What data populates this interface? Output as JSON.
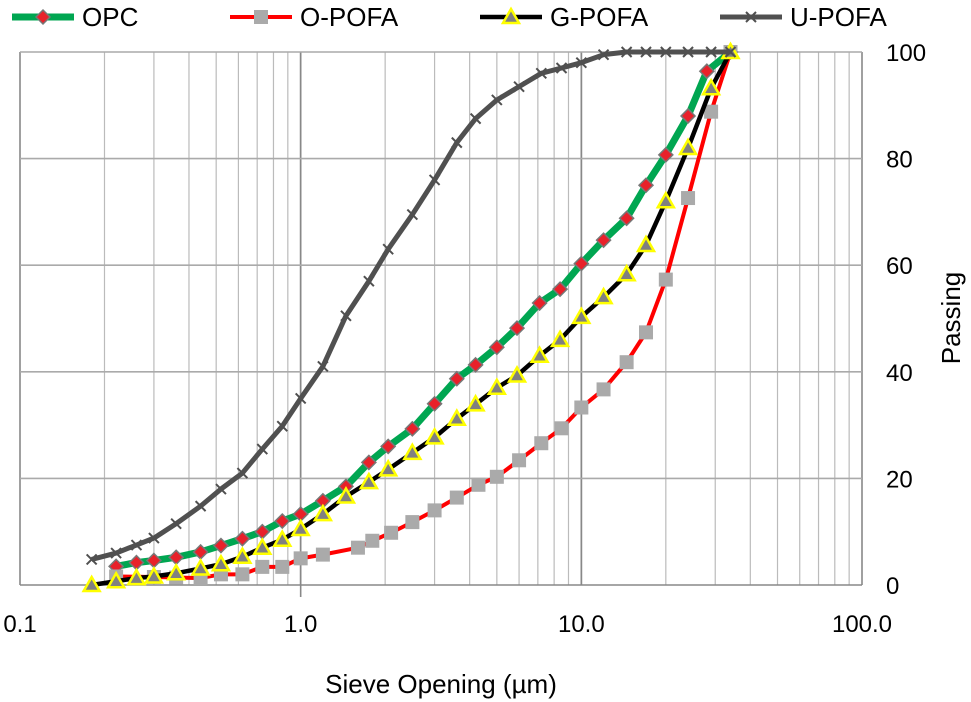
{
  "chart_data": {
    "type": "line",
    "title": "",
    "xlabel": "Sieve Opening (µm)",
    "ylabel": "Passing",
    "x_scale": "log",
    "xlim": [
      0.1,
      100
    ],
    "ylim": [
      0,
      100
    ],
    "x_ticks": [
      "0.1",
      "1.0",
      "10.0",
      "100.0"
    ],
    "y_ticks": [
      "0",
      "20",
      "40",
      "60",
      "80",
      "100"
    ],
    "y_axis_side": "right",
    "grid": true,
    "legend_position": "top",
    "series": [
      {
        "name": "OPC",
        "color": "#00a651",
        "marker": "diamond",
        "marker_color": "#e8212a",
        "x": [
          0.22,
          0.26,
          0.3,
          0.36,
          0.44,
          0.52,
          0.62,
          0.73,
          0.86,
          1.0,
          1.2,
          1.45,
          1.75,
          2.05,
          2.5,
          3.0,
          3.6,
          4.2,
          5.0,
          5.9,
          7.1,
          8.4,
          10,
          12,
          14.5,
          17,
          20,
          24,
          28,
          34
        ],
        "y": [
          3.5,
          4.2,
          4.6,
          5.2,
          6.2,
          7.4,
          8.7,
          10,
          12,
          13.3,
          15.8,
          18.5,
          23,
          26,
          29.3,
          34,
          38.7,
          41.3,
          44.6,
          48.2,
          52.9,
          55.5,
          60.3,
          64.7,
          68.8,
          75,
          80.7,
          88,
          96.4,
          100
        ]
      },
      {
        "name": "O-POFA",
        "color": "#ff0000",
        "marker": "square",
        "marker_color": "#aaaaaa",
        "x": [
          0.22,
          0.3,
          0.36,
          0.44,
          0.52,
          0.62,
          0.73,
          0.86,
          1.0,
          1.2,
          1.6,
          1.8,
          2.1,
          2.5,
          3.0,
          3.6,
          4.3,
          5.0,
          6.0,
          7.2,
          8.5,
          10,
          12,
          14.5,
          17,
          20,
          24,
          29,
          34
        ],
        "y": [
          1.6,
          1.5,
          1.4,
          1.3,
          2.0,
          2.0,
          3.4,
          3.4,
          5.0,
          5.7,
          7.0,
          8.3,
          9.8,
          11.8,
          14,
          16.4,
          18.8,
          20.3,
          23.4,
          26.6,
          29.4,
          33.3,
          36.7,
          41.8,
          47.4,
          57.3,
          72.6,
          88.8,
          100
        ]
      },
      {
        "name": "G-POFA",
        "color": "#000000",
        "marker": "triangle",
        "marker_color": "#808080",
        "x": [
          0.18,
          0.22,
          0.26,
          0.3,
          0.36,
          0.44,
          0.52,
          0.62,
          0.73,
          0.86,
          1.0,
          1.2,
          1.45,
          1.75,
          2.05,
          2.5,
          3.0,
          3.6,
          4.2,
          5.0,
          5.9,
          7.1,
          8.4,
          10,
          12,
          14.5,
          17,
          20,
          24,
          29,
          34
        ],
        "y": [
          0,
          0.7,
          1.3,
          1.6,
          2.2,
          3.1,
          3.9,
          5.3,
          7,
          8.5,
          10.5,
          13.3,
          16.6,
          19.3,
          21.7,
          24.8,
          27.7,
          31.2,
          33.9,
          37,
          39.3,
          43,
          46,
          50.3,
          54,
          58.3,
          63.8,
          72,
          82,
          93.2,
          100
        ]
      },
      {
        "name": "U-POFA",
        "color": "#505050",
        "marker": "x",
        "marker_color": "#505050",
        "x": [
          0.18,
          0.22,
          0.26,
          0.3,
          0.36,
          0.44,
          0.52,
          0.62,
          0.73,
          0.86,
          1.0,
          1.2,
          1.45,
          1.75,
          2.05,
          2.5,
          3.0,
          3.6,
          4.2,
          5.0,
          6.0,
          7.2,
          8.5,
          10,
          12,
          14.5,
          17,
          20,
          24,
          29,
          34
        ],
        "y": [
          4.8,
          6,
          7.5,
          8.8,
          11.5,
          14.8,
          18,
          21,
          25.5,
          29.8,
          35,
          41,
          50.5,
          57,
          63,
          69.5,
          76,
          83,
          87.5,
          91,
          93.5,
          96,
          97,
          98,
          99.5,
          100,
          100,
          100,
          100,
          100,
          100
        ]
      }
    ]
  }
}
